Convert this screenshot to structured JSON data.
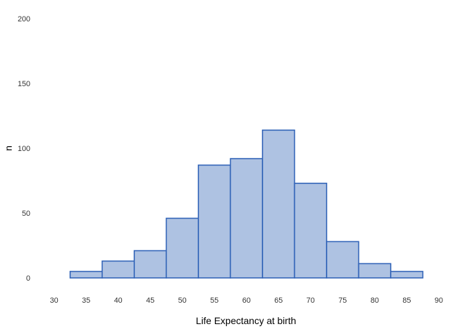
{
  "chart_data": {
    "type": "bar",
    "subtype": "histogram",
    "xlabel": "Life Expectancy at birth",
    "ylabel": "n",
    "xlim": [
      27.5,
      92.5
    ],
    "ylim": [
      0,
      200
    ],
    "x_ticks": [
      30,
      35,
      40,
      45,
      50,
      55,
      60,
      65,
      70,
      75,
      80,
      85,
      90
    ],
    "y_ticks": [
      0,
      50,
      100,
      150,
      200
    ],
    "bin_width": 5,
    "bins": [
      {
        "start": 32.5,
        "end": 37.5,
        "count": 5
      },
      {
        "start": 37.5,
        "end": 42.5,
        "count": 13
      },
      {
        "start": 42.5,
        "end": 47.5,
        "count": 21
      },
      {
        "start": 47.5,
        "end": 52.5,
        "count": 46
      },
      {
        "start": 52.5,
        "end": 57.5,
        "count": 87
      },
      {
        "start": 57.5,
        "end": 62.5,
        "count": 92
      },
      {
        "start": 62.5,
        "end": 67.5,
        "count": 114
      },
      {
        "start": 67.5,
        "end": 72.5,
        "count": 73
      },
      {
        "start": 72.5,
        "end": 77.5,
        "count": 28
      },
      {
        "start": 77.5,
        "end": 82.5,
        "count": 11
      },
      {
        "start": 82.5,
        "end": 87.5,
        "count": 5
      }
    ],
    "grid": false,
    "fill_color": "#aec2e2",
    "stroke_color": "#3264b8"
  }
}
